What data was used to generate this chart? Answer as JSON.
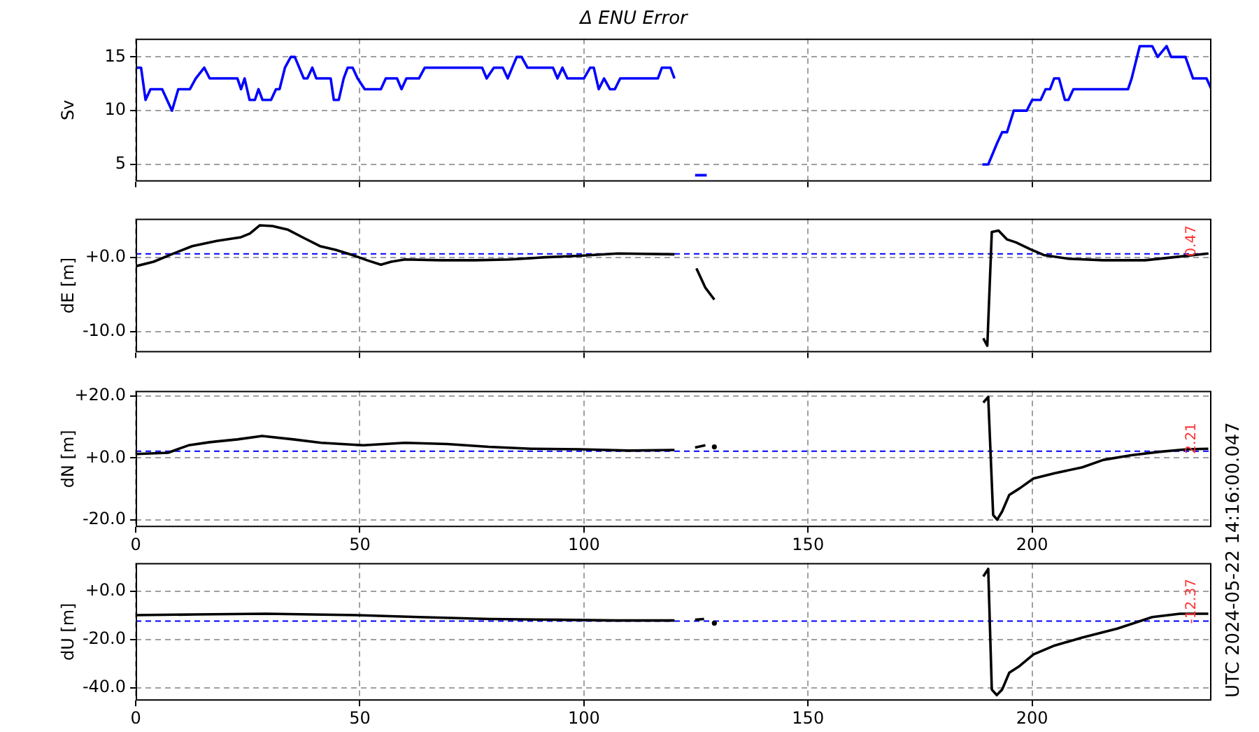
{
  "chart_data": [
    {
      "type": "line",
      "title": "Δ ENU Error",
      "ylabel": "Sv",
      "xlim": [
        0,
        240
      ],
      "xticks": [
        0,
        50,
        100,
        150,
        200
      ],
      "ylim": [
        3.4,
        16.7
      ],
      "yticks": [
        5,
        10,
        15
      ],
      "grid": true,
      "tick_labels": "y",
      "series": [
        {
          "color": "#0000ff",
          "x": [
            0,
            1.2,
            2.2,
            3.3,
            5.9,
            8.1,
            9.5,
            12.1,
            13.4,
            15.3,
            16.5,
            22.7,
            23.5,
            24.3,
            25.4,
            26.6,
            27.4,
            28.3,
            30.2,
            31.3,
            32.1,
            33.3,
            34.6,
            35.5,
            37.5,
            38.3,
            39.4,
            40.3,
            43.5,
            44.2,
            45.3,
            46.4,
            47.3,
            48.4,
            49.5,
            51.1,
            54.7,
            55.8,
            58.3,
            59.3,
            60.4,
            63.2,
            64.5,
            77.3,
            78.3,
            79.9,
            81.9,
            83.0,
            85.0,
            86.1,
            87.4,
            93.1,
            94.1,
            95.2,
            96.3,
            100,
            101.4,
            102.2,
            103.3,
            104.5,
            105.8,
            106.9,
            108.1,
            116.5,
            117.4,
            119.3,
            120.2,
            122.5,
            124.8,
            127.4,
            158,
            188.9,
            190.2,
            192.2,
            193.3,
            194.4,
            195.9,
            198.8,
            200,
            201.9,
            203,
            204,
            204.9,
            206,
            207.3,
            208.1,
            209.2,
            221.4,
            222.2,
            224,
            226.8,
            228,
            230,
            231,
            234.2,
            235.9,
            238.9,
            240
          ],
          "values": [
            14,
            14,
            11,
            12,
            12,
            10,
            12,
            12,
            13,
            14,
            13,
            13,
            12,
            13,
            11,
            11,
            12,
            11,
            11,
            12,
            12,
            14,
            15,
            15,
            13,
            13,
            14,
            13,
            13,
            11,
            11,
            13,
            14,
            14,
            13,
            12,
            12,
            13,
            13,
            12,
            13,
            13,
            14,
            14,
            13,
            14,
            14,
            13,
            15,
            15,
            14,
            14,
            13,
            14,
            13,
            13,
            14,
            14,
            12,
            13,
            12,
            12,
            13,
            13,
            14,
            14,
            13,
            null,
            4,
            4,
            null,
            5,
            5,
            7,
            8,
            8,
            10,
            10,
            11,
            11,
            12,
            12,
            13,
            13,
            11,
            11,
            12,
            12,
            13,
            16,
            16,
            15,
            16,
            15,
            15,
            13,
            13,
            12
          ]
        }
      ]
    },
    {
      "type": "line",
      "ylabel": "dE [m]",
      "xlim": [
        0,
        240
      ],
      "xticks": [
        0,
        50,
        100,
        150,
        200
      ],
      "ylim": [
        -12.8,
        5.2
      ],
      "yticks": [
        {
          "value": 0,
          "label": "+0.0"
        },
        {
          "value": -10,
          "label": "-10.0"
        }
      ],
      "grid": true,
      "tick_labels": "y",
      "ref_lines": [
        {
          "axis": "y",
          "value": 0.47,
          "label": "0.47",
          "color": "#0000ff",
          "line_style": "dashed"
        }
      ],
      "series": [
        {
          "color": "#000000",
          "x": [
            0,
            4.0,
            8.0,
            12.6,
            18.1,
            23.5,
            25.5,
            27.7,
            30.5,
            34.0,
            37.5,
            41.1,
            44.6,
            48.4,
            51.6,
            54.7,
            57.0,
            60.1,
            68.0,
            75.8,
            83.5,
            91.3,
            99.1,
            107.6,
            120.2,
            122.5,
            125.1,
            127.1,
            129.1,
            158,
            189.1,
            190.0,
            191.0,
            192.5,
            194.4,
            196.4,
            199.5,
            202.6,
            208.1,
            215.9,
            225.2,
            231.5,
            239.3
          ],
          "values": [
            -1.2,
            -0.6,
            0.4,
            1.5,
            2.2,
            2.7,
            3.2,
            4.3,
            4.2,
            3.7,
            2.6,
            1.5,
            1.0,
            0.3,
            -0.4,
            -1.0,
            -0.6,
            -0.3,
            -0.4,
            -0.4,
            -0.3,
            0,
            0.2,
            0.5,
            0.4,
            null,
            -1.5,
            -4.1,
            -5.7,
            null,
            -10.9,
            -11.9,
            3.4,
            3.6,
            2.4,
            2.0,
            1.1,
            0.3,
            -0.2,
            -0.4,
            -0.4,
            0,
            0.5
          ]
        }
      ]
    },
    {
      "type": "line",
      "ylabel": "dN [m]",
      "xlim": [
        0,
        240
      ],
      "xticks": [
        0,
        50,
        100,
        150,
        200
      ],
      "ylim": [
        -22.3,
        21.7
      ],
      "yticks": [
        {
          "value": 20,
          "label": "+20.0"
        },
        {
          "value": 0,
          "label": "+0.0"
        },
        {
          "value": -20,
          "label": "-20.0"
        }
      ],
      "grid": true,
      "ref_lines": [
        {
          "axis": "y",
          "value": 2.21,
          "label": "2.21",
          "color": "#0000ff",
          "line_style": "dashed"
        }
      ],
      "series": [
        {
          "color": "#000000",
          "x": [
            0,
            7.2,
            11.8,
            16.5,
            22.7,
            28.2,
            35.2,
            41.4,
            50.8,
            60.1,
            69.5,
            78.8,
            88.2,
            99.1,
            110.0,
            120.2,
            122.5,
            124.8,
            127.1,
            158,
            189.1,
            190.2,
            191.3,
            192.2,
            193.3,
            194.9,
            197.2,
            200.3,
            205.0,
            211.2,
            215.9,
            222.1,
            228.4,
            234.6,
            239.3
          ],
          "values": [
            1.3,
            1.7,
            4.1,
            5.1,
            6.0,
            7.1,
            6.0,
            4.9,
            4.1,
            4.9,
            4.5,
            3.6,
            3.0,
            2.8,
            2.4,
            2.6,
            null,
            3.4,
            4.1,
            null,
            17.9,
            19.7,
            -18.4,
            -19.9,
            -17.3,
            -11.9,
            -9.8,
            -6.6,
            -4.9,
            -3.0,
            -0.6,
            0.9,
            2.0,
            2.8,
            3.0
          ]
        },
        {
          "type": "scatter",
          "color": "#000000",
          "marker": "circle",
          "x": [
            129.1
          ],
          "values": [
            3.6
          ]
        }
      ]
    },
    {
      "type": "line",
      "ylabel": "dU [m]",
      "xlim": [
        0,
        240
      ],
      "xticks": [
        0,
        50,
        100,
        150,
        200
      ],
      "ylim": [
        -45.4,
        11.8
      ],
      "yticks": [
        {
          "value": 0,
          "label": "+0.0"
        },
        {
          "value": -20,
          "label": "-20.0"
        },
        {
          "value": -40,
          "label": "-40.0"
        }
      ],
      "grid": true,
      "ref_lines": [
        {
          "axis": "y",
          "value": -12.37,
          "label": "-12.37",
          "color": "#0000ff",
          "line_style": "dashed"
        }
      ],
      "annotations": [
        "UTC 2024-05-22 14:16:00.047"
      ],
      "series": [
        {
          "color": "#000000",
          "x": [
            0,
            13.4,
            29.0,
            49.2,
            63.2,
            78.8,
            94.4,
            106.9,
            120.2,
            122.5,
            124.8,
            126.8,
            158,
            189.1,
            190.2,
            191.0,
            192.1,
            193.3,
            194.9,
            197.2,
            200.3,
            205.0,
            211.2,
            219.0,
            226.8,
            233.0,
            239.3
          ],
          "values": [
            -9.9,
            -9.6,
            -9.3,
            -9.9,
            -10.7,
            -11.5,
            -11.8,
            -12.1,
            -12.1,
            null,
            -11.8,
            -11.5,
            null,
            6.2,
            9.3,
            -40.8,
            -43.1,
            -40.8,
            -33.8,
            -31.0,
            -26.2,
            -22.5,
            -19.2,
            -15.5,
            -10.7,
            -9.3,
            -9.3
          ]
        },
        {
          "type": "scatter",
          "color": "#000000",
          "marker": "circle",
          "x": [
            129.1
          ],
          "values": [
            -13.2
          ]
        }
      ]
    }
  ]
}
